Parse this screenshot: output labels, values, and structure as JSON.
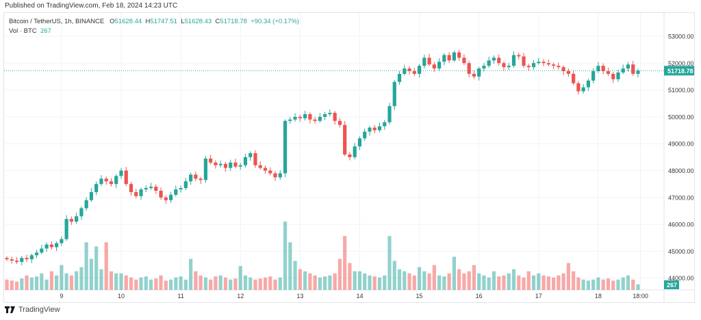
{
  "published": "Published on TradingView.com, Feb 18, 2024 14:23 UTC",
  "legend": {
    "symbol": "Bitcoin / TetherUS, 1h, BINANCE",
    "o_label": "O",
    "o": "51628.44",
    "h_label": "H",
    "h": "51747.51",
    "l_label": "L",
    "l": "51628.43",
    "c_label": "C",
    "c": "51718.78",
    "change": "+90.34 (+0.17%)",
    "vol_label": "Vol · BTC",
    "vol": "267"
  },
  "brand": "TradingView",
  "colors": {
    "up": "#26a69a",
    "down": "#ef5350"
  },
  "chart_data": {
    "type": "candlestick",
    "title": "Bitcoin / TetherUS, 1h, BINANCE",
    "ylim": [
      43600,
      53400
    ],
    "y_ticks": [
      "53000.00",
      "52000.00",
      "51000.00",
      "50000.00",
      "49000.00",
      "48000.00",
      "47000.00",
      "46000.00",
      "45000.00",
      "44000.00"
    ],
    "y_tick_values": [
      53000,
      52000,
      51000,
      50000,
      49000,
      48000,
      47000,
      46000,
      45000,
      44000
    ],
    "x_ticks": [
      "9",
      "10",
      "11",
      "12",
      "13",
      "14",
      "15",
      "16",
      "17",
      "18",
      "18:00"
    ],
    "x_tick_index": [
      11,
      23,
      35,
      47,
      59,
      71,
      83,
      95,
      107,
      119,
      127.5
    ],
    "last_price": "51718.78",
    "last_volume": "267",
    "start_open": 44750,
    "closes": [
      44700,
      44650,
      44600,
      44750,
      44700,
      44850,
      44950,
      45100,
      45250,
      45150,
      45300,
      45450,
      46200,
      46100,
      46300,
      46600,
      46900,
      47200,
      47500,
      47700,
      47600,
      47500,
      47800,
      48000,
      47500,
      47200,
      47050,
      47300,
      47350,
      47400,
      47250,
      47000,
      46900,
      47100,
      47300,
      47350,
      47600,
      47850,
      47700,
      47650,
      48450,
      48300,
      48200,
      48250,
      48100,
      48300,
      48150,
      48200,
      48500,
      48650,
      48200,
      48100,
      48000,
      47900,
      47750,
      47900,
      49850,
      49900,
      50000,
      49950,
      50100,
      49900,
      49850,
      50000,
      50100,
      50150,
      49850,
      49700,
      48600,
      48500,
      48900,
      49200,
      49450,
      49600,
      49500,
      49650,
      49800,
      50400,
      51300,
      51600,
      51800,
      51700,
      51600,
      51900,
      52200,
      51950,
      51800,
      52050,
      52300,
      52100,
      52400,
      52200,
      52000,
      51600,
      51500,
      51800,
      51900,
      52100,
      52200,
      52000,
      51850,
      51900,
      52300,
      52250,
      51900,
      51850,
      52000,
      52050,
      52000,
      51950,
      51900,
      51850,
      51700,
      51600,
      51250,
      50950,
      51100,
      51350,
      51700,
      51900,
      51700,
      51600,
      51400,
      51650,
      51800,
      51950,
      51600,
      51718.78
    ],
    "volumes": [
      500,
      450,
      400,
      550,
      700,
      600,
      650,
      800,
      500,
      900,
      700,
      1200,
      800,
      700,
      900,
      1100,
      2300,
      1500,
      2100,
      1000,
      2300,
      900,
      800,
      800,
      700,
      600,
      500,
      600,
      650,
      500,
      550,
      700,
      450,
      500,
      600,
      650,
      500,
      1500,
      900,
      700,
      600,
      500,
      650,
      700,
      600,
      500,
      550,
      1150,
      700,
      600,
      500,
      550,
      600,
      650,
      500,
      600,
      3300,
      2300,
      1400,
      1000,
      900,
      800,
      700,
      600,
      650,
      700,
      800,
      1500,
      2600,
      1300,
      900,
      900,
      800,
      700,
      650,
      600,
      700,
      2600,
      1400,
      1000,
      900,
      800,
      700,
      1100,
      900,
      800,
      1200,
      700,
      650,
      800,
      1600,
      1000,
      800,
      900,
      1200,
      800,
      700,
      600,
      900,
      650,
      700,
      800,
      1000,
      700,
      600,
      900,
      700,
      800,
      700,
      650,
      600,
      700,
      800,
      1300,
      900,
      600,
      500,
      450,
      500,
      600,
      500,
      550,
      450,
      500,
      600,
      700,
      500,
      267
    ]
  }
}
